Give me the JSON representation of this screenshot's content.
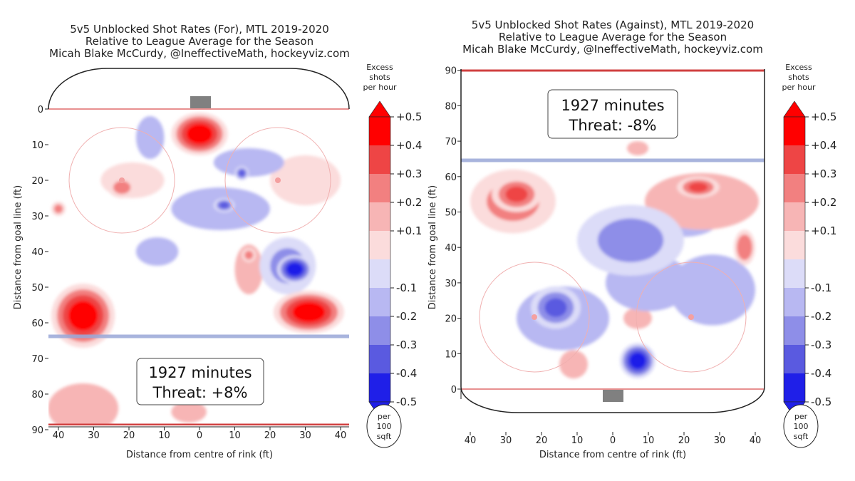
{
  "colors": {
    "strong_red": "#ff0000",
    "red": "#ee4545",
    "mid_red": "#f28080",
    "light_red": "#f7b5b5",
    "lightest_red": "#fbdcdc",
    "lightest_blue": "#dcdcf8",
    "light_blue": "#b8b8f2",
    "mid_blue": "#8e8ee8",
    "blue": "#5a5ae0",
    "strong_blue": "#1f1fe8",
    "rink_line": "#e89090",
    "blue_line": "#9aa8d8",
    "net": "#808080"
  },
  "colorbar": {
    "title_line1": "Excess",
    "title_line2": "shots",
    "title_line3": "per hour",
    "tick_labels": [
      "+0.5",
      "+0.4",
      "+0.3",
      "+0.2",
      "+0.1",
      "-0.1",
      "-0.2",
      "-0.3",
      "-0.4",
      "-0.5"
    ],
    "unit_line1": "per",
    "unit_line2": "100",
    "unit_line3": "sqft"
  },
  "chart_data": [
    {
      "type": "heatmap",
      "title_line1": "5v5 Unblocked Shot Rates (For), MTL 2019-2020",
      "title_line2": "Relative to League Average for the Season",
      "title_line3": "Micah Blake McCurdy, @IneffectiveMath, hockeyviz.com",
      "xlabel": "Distance from centre of rink (ft)",
      "ylabel": "Distance from goal line (ft)",
      "x_ticks": [
        "40",
        "30",
        "20",
        "10",
        "0",
        "10",
        "20",
        "30",
        "40"
      ],
      "y_ticks": [
        "0",
        "10",
        "20",
        "30",
        "40",
        "50",
        "60",
        "70",
        "80",
        "90"
      ],
      "xlim": [
        -42.5,
        42.5
      ],
      "ylim": [
        90,
        -11
      ],
      "y_axis_inverted": true,
      "annotation_line1": "1927 minutes",
      "annotation_line2": "Threat: +8%",
      "minutes": 1927,
      "threat_pct": 8,
      "blobs": [
        {
          "x": 0,
          "y": 7,
          "rx": 8,
          "ry": 6,
          "v": 0.5
        },
        {
          "x": -33,
          "y": 58,
          "rx": 9,
          "ry": 9,
          "v": 0.5
        },
        {
          "x": 31,
          "y": 57,
          "rx": 10,
          "ry": 6,
          "v": 0.45
        },
        {
          "x": -22,
          "y": 22,
          "rx": 4,
          "ry": 3,
          "v": 0.2
        },
        {
          "x": -40,
          "y": 28,
          "rx": 2,
          "ry": 2,
          "v": 0.2
        },
        {
          "x": 14,
          "y": 41,
          "rx": 2,
          "ry": 2,
          "v": 0.2
        },
        {
          "x": -33,
          "y": 84,
          "rx": 10,
          "ry": 7,
          "v": 0.15
        },
        {
          "x": -3,
          "y": 85,
          "rx": 5,
          "ry": 3,
          "v": 0.15
        },
        {
          "x": -19,
          "y": 20,
          "rx": 9,
          "ry": 5,
          "v": 0.1
        },
        {
          "x": 30,
          "y": 20,
          "rx": 10,
          "ry": 7,
          "v": 0.1
        },
        {
          "x": 14,
          "y": 45,
          "rx": 4,
          "ry": 7,
          "v": 0.15
        },
        {
          "x": 27,
          "y": 45,
          "rx": 5,
          "ry": 4,
          "v": -0.45
        },
        {
          "x": 25,
          "y": 44,
          "rx": 8,
          "ry": 8,
          "v": -0.2
        },
        {
          "x": 6,
          "y": 28,
          "rx": 14,
          "ry": 6,
          "v": -0.15
        },
        {
          "x": 7,
          "y": 27,
          "rx": 3,
          "ry": 2,
          "v": -0.3
        },
        {
          "x": 12,
          "y": 18,
          "rx": 2,
          "ry": 2,
          "v": -0.3
        },
        {
          "x": -14,
          "y": 8,
          "rx": 4,
          "ry": 6,
          "v": -0.15
        },
        {
          "x": -12,
          "y": 40,
          "rx": 6,
          "ry": 4,
          "v": -0.15
        },
        {
          "x": 14,
          "y": 15,
          "rx": 10,
          "ry": 4,
          "v": -0.12
        }
      ]
    },
    {
      "type": "heatmap",
      "title_line1": "5v5 Unblocked Shot Rates (Against), MTL 2019-2020",
      "title_line2": "Relative to League Average for the Season",
      "title_line3": "Micah Blake McCurdy, @IneffectiveMath, hockeyviz.com",
      "xlabel": "Distance from centre of rink (ft)",
      "ylabel": "Distance from goal line (ft)",
      "x_ticks": [
        "40",
        "30",
        "20",
        "10",
        "0",
        "10",
        "20",
        "30",
        "40"
      ],
      "y_ticks": [
        "0",
        "10",
        "20",
        "30",
        "40",
        "50",
        "60",
        "70",
        "80",
        "90"
      ],
      "xlim": [
        -42.5,
        42.5
      ],
      "ylim": [
        -11,
        90
      ],
      "y_axis_inverted": false,
      "annotation_line1": "1927 minutes",
      "annotation_line2": "Threat: -8%",
      "minutes": 1927,
      "threat_pct": -8,
      "blobs": [
        {
          "x": -27,
          "y": 55,
          "rx": 7,
          "ry": 5,
          "v": 0.35
        },
        {
          "x": -28,
          "y": 53,
          "rx": 12,
          "ry": 9,
          "v": 0.2
        },
        {
          "x": 24,
          "y": 57,
          "rx": 6,
          "ry": 3,
          "v": 0.3
        },
        {
          "x": 25,
          "y": 53,
          "rx": 16,
          "ry": 8,
          "v": 0.15
        },
        {
          "x": 37,
          "y": 40,
          "rx": 3,
          "ry": 5,
          "v": 0.25
        },
        {
          "x": 7,
          "y": 20,
          "rx": 4,
          "ry": 3,
          "v": 0.12
        },
        {
          "x": 7,
          "y": 68,
          "rx": 3,
          "ry": 2,
          "v": 0.12
        },
        {
          "x": -11,
          "y": 7,
          "rx": 4,
          "ry": 4,
          "v": 0.12
        },
        {
          "x": 7,
          "y": 8,
          "rx": 5,
          "ry": 5,
          "v": -0.5
        },
        {
          "x": -16,
          "y": 23,
          "rx": 7,
          "ry": 6,
          "v": -0.3
        },
        {
          "x": -14,
          "y": 20,
          "rx": 13,
          "ry": 9,
          "v": -0.15
        },
        {
          "x": 5,
          "y": 42,
          "rx": 15,
          "ry": 10,
          "v": -0.2
        },
        {
          "x": 10,
          "y": 30,
          "rx": 12,
          "ry": 8,
          "v": -0.12
        },
        {
          "x": 28,
          "y": 28,
          "rx": 12,
          "ry": 10,
          "v": -0.12
        },
        {
          "x": 20,
          "y": 48,
          "rx": 10,
          "ry": 5,
          "v": -0.12
        }
      ]
    }
  ]
}
